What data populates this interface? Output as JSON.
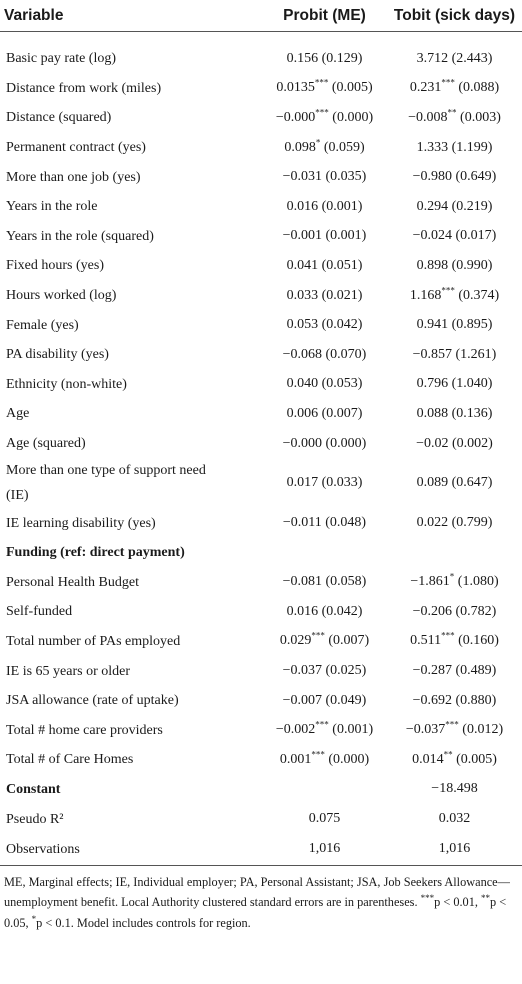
{
  "table": {
    "header": [
      "Variable",
      "Probit (ME)",
      "Tobit (sick days)"
    ],
    "rows": [
      [
        "Basic pay rate (log)",
        "0.156 (0.129)",
        "3.712 (2.443)"
      ],
      [
        "Distance from work (miles)",
        "0.0135*** (0.005)",
        "0.231*** (0.088)"
      ],
      [
        "Distance (squared)",
        "−0.000*** (0.000)",
        "−0.008** (0.003)"
      ],
      [
        "Permanent contract (yes)",
        "0.098* (0.059)",
        "1.333 (1.199)"
      ],
      [
        "More than one job (yes)",
        "−0.031 (0.035)",
        "−0.980 (0.649)"
      ],
      [
        "Years in the role",
        "0.016 (0.001)",
        "0.294 (0.219)"
      ],
      [
        "Years in the role (squared)",
        "−0.001 (0.001)",
        "−0.024 (0.017)"
      ],
      [
        "Fixed hours (yes)",
        "0.041 (0.051)",
        "0.898 (0.990)"
      ],
      [
        "Hours worked (log)",
        "0.033 (0.021)",
        "1.168*** (0.374)"
      ],
      [
        "Female (yes)",
        "0.053 (0.042)",
        "0.941 (0.895)"
      ],
      [
        "PA disability (yes)",
        "−0.068 (0.070)",
        "−0.857 (1.261)"
      ],
      [
        "Ethnicity (non-white)",
        "0.040 (0.053)",
        "0.796 (1.040)"
      ],
      [
        "Age",
        "0.006 (0.007)",
        "0.088 (0.136)"
      ],
      [
        "Age (squared)",
        "−0.000 (0.000)",
        "−0.02 (0.002)"
      ],
      [
        "More than one type of support need (IE)",
        "0.017 (0.033)",
        "0.089 (0.647)"
      ],
      [
        "IE learning disability (yes)",
        "−0.011 (0.048)",
        "0.022 (0.799)"
      ],
      [
        "Funding (ref: direct payment)",
        null,
        null
      ],
      [
        "Personal Health Budget",
        "−0.081 (0.058)",
        "−1.861* (1.080)"
      ],
      [
        "Self-funded",
        "0.016 (0.042)",
        "−0.206 (0.782)"
      ],
      [
        "Total number of PAs employed",
        "0.029*** (0.007)",
        "0.511*** (0.160)"
      ],
      [
        "IE is 65 years or older",
        "−0.037 (0.025)",
        "−0.287 (0.489)"
      ],
      [
        "JSA allowance (rate of uptake)",
        "−0.007 (0.049)",
        "−0.692 (0.880)"
      ],
      [
        "Total # home care providers",
        "−0.002*** (0.001)",
        "−0.037*** (0.012)"
      ],
      [
        "Total # of Care Homes",
        "0.001*** (0.000)",
        "0.014** (0.005)"
      ],
      [
        "Constant",
        null,
        "−18.498"
      ],
      [
        "Pseudo R²",
        "0.075",
        "0.032"
      ],
      [
        "Observations",
        "1,016",
        "1,016"
      ]
    ],
    "bold_rows": [
      16,
      24
    ],
    "footnote": "ME, Marginal effects; IE, Individual employer; PA, Personal Assistant; JSA, Job Seekers Allowance—unemployment benefit. Local Authority clustered standard errors are in parentheses. ***p < 0.01, **p < 0.05, *p < 0.1. Model includes controls for region."
  }
}
